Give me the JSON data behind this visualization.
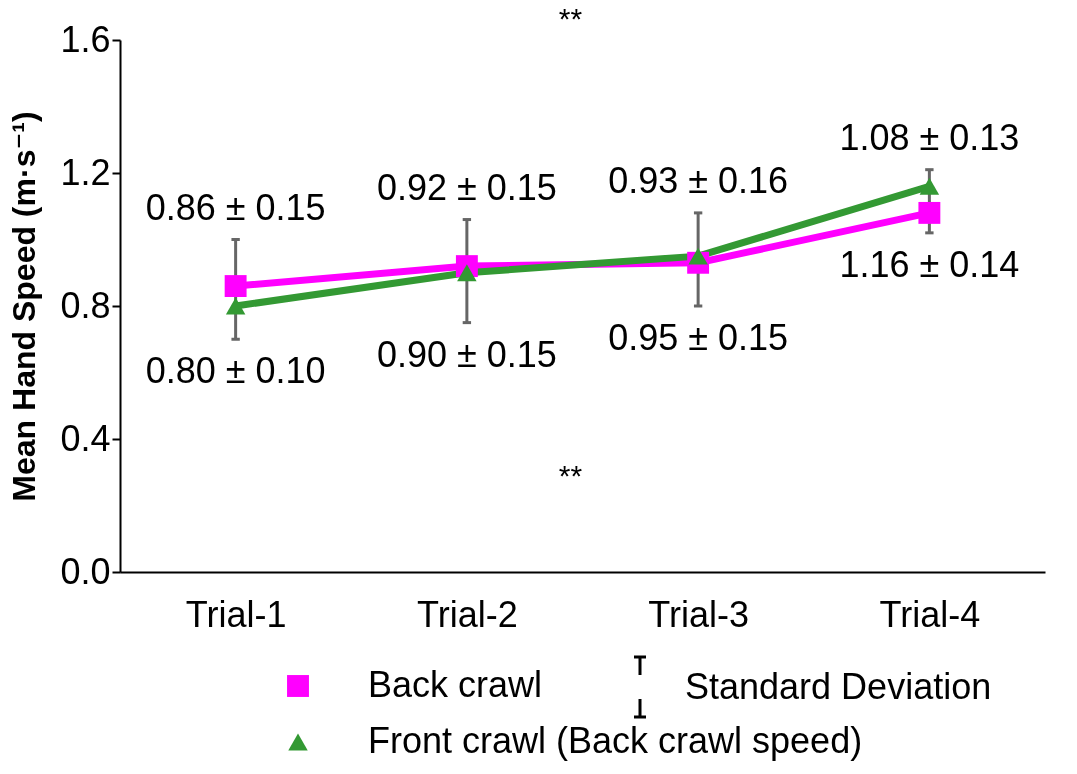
{
  "chart_data": {
    "type": "line",
    "ylabel": "Mean Hand Speed (m·s⁻¹)",
    "categories": [
      "Trial-1",
      "Trial-2",
      "Trial-3",
      "Trial-4"
    ],
    "ylim": [
      0,
      1.6
    ],
    "yticks": [
      {
        "value": 0,
        "label": "0.0"
      },
      0.4,
      0.8,
      1.2,
      1.6
    ],
    "grid": false,
    "legend": "bottom",
    "line_style": "solid",
    "series": [
      {
        "name": "Back crawl",
        "color": "#ff00ff",
        "marker": "square",
        "values": [
          0.86,
          0.92,
          0.93,
          1.08
        ],
        "value_labels": [
          "0.86 ± 0.15",
          "0.92 ± 0.15",
          "0.93 ± 0.16",
          "1.08 ± 0.13"
        ]
      },
      {
        "name": "Front crawl (Back crawl speed)",
        "color": "#339933",
        "marker": "triangle",
        "values": [
          0.8,
          0.9,
          0.95,
          1.16
        ],
        "errors": [
          [
            0.7,
            1.0
          ],
          [
            0.75,
            1.06
          ],
          [
            0.8,
            1.08
          ],
          [
            1.02,
            1.21
          ]
        ],
        "value_labels": [
          "0.80 ± 0.10",
          "0.90 ± 0.15",
          "0.95 ± 0.15",
          "1.16 ± 0.14"
        ]
      }
    ],
    "annotations": [
      "**",
      "**",
      "Standard Deviation"
    ]
  }
}
